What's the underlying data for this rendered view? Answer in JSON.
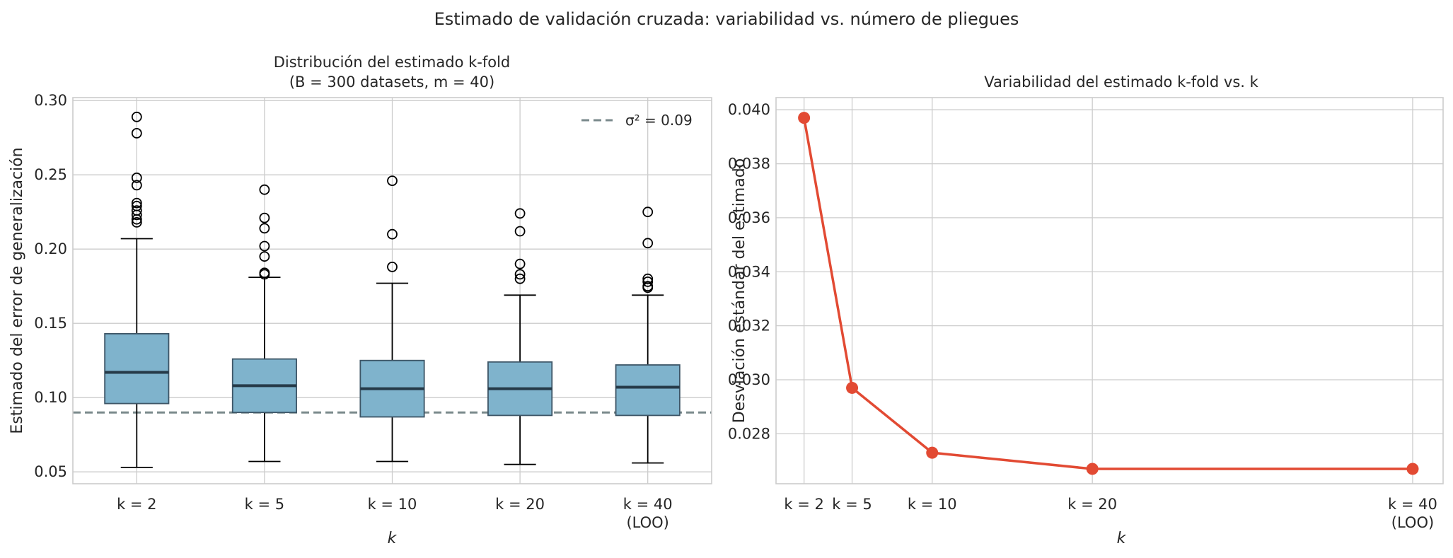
{
  "figure": {
    "title": "Estimado de validación cruzada: variabilidad vs. número de pliegues"
  },
  "chart_data": [
    {
      "type": "box",
      "title_line1": "Distribución del estimado k-fold",
      "title_line2": "(B = 300 datasets, m = 40)",
      "xlabel": "k",
      "ylabel": "Estimado del error de generalización",
      "ylim": [
        0.042,
        0.302
      ],
      "yticks": [
        0.05,
        0.1,
        0.15,
        0.2,
        0.25,
        0.3
      ],
      "ytick_labels": [
        "0.05",
        "0.10",
        "0.15",
        "0.20",
        "0.25",
        "0.30"
      ],
      "grid": true,
      "categories": [
        {
          "label": "k = 2",
          "sublabel": ""
        },
        {
          "label": "k = 5",
          "sublabel": ""
        },
        {
          "label": "k = 10",
          "sublabel": ""
        },
        {
          "label": "k = 20",
          "sublabel": ""
        },
        {
          "label": "k = 40",
          "sublabel": "(LOO)"
        }
      ],
      "boxes": [
        {
          "whisker_low": 0.053,
          "q1": 0.096,
          "median": 0.117,
          "q3": 0.143,
          "whisker_high": 0.207,
          "outliers": [
            0.289,
            0.278,
            0.248,
            0.243,
            0.231,
            0.229,
            0.226,
            0.223,
            0.22,
            0.218
          ]
        },
        {
          "whisker_low": 0.057,
          "q1": 0.09,
          "median": 0.108,
          "q3": 0.126,
          "whisker_high": 0.181,
          "outliers": [
            0.24,
            0.221,
            0.214,
            0.202,
            0.195,
            0.184,
            0.183
          ]
        },
        {
          "whisker_low": 0.057,
          "q1": 0.087,
          "median": 0.106,
          "q3": 0.125,
          "whisker_high": 0.177,
          "outliers": [
            0.246,
            0.21,
            0.188
          ]
        },
        {
          "whisker_low": 0.055,
          "q1": 0.088,
          "median": 0.106,
          "q3": 0.124,
          "whisker_high": 0.169,
          "outliers": [
            0.224,
            0.212,
            0.19,
            0.183,
            0.18
          ]
        },
        {
          "whisker_low": 0.056,
          "q1": 0.088,
          "median": 0.107,
          "q3": 0.122,
          "whisker_high": 0.169,
          "outliers": [
            0.225,
            0.204,
            0.18,
            0.178,
            0.175,
            0.174
          ]
        }
      ],
      "reference_line": {
        "value": 0.09,
        "label": "σ² = 0.09",
        "style": "dashed"
      },
      "legend_position": "top-right",
      "colors": {
        "box_fill": "#7fb3cc",
        "box_edge": "#3d5566",
        "median": "#263a48",
        "reference": "#7a8a8c",
        "whisker": "#000000"
      }
    },
    {
      "type": "line",
      "title": "Variabilidad del estimado k-fold vs. k",
      "xlabel": "k",
      "ylabel": "Desviación estándar del estimado",
      "x": [
        2,
        5,
        10,
        20,
        40
      ],
      "y": [
        0.0397,
        0.0297,
        0.0273,
        0.0267,
        0.0267
      ],
      "xlim": [
        0.25,
        41.9
      ],
      "ylim": [
        0.02615,
        0.04045
      ],
      "yticks": [
        0.028,
        0.03,
        0.032,
        0.034,
        0.036,
        0.038,
        0.04
      ],
      "ytick_labels": [
        "0.028",
        "0.030",
        "0.032",
        "0.034",
        "0.036",
        "0.038",
        "0.040"
      ],
      "xtick_labels": [
        {
          "label": "k = 2",
          "sublabel": ""
        },
        {
          "label": "k = 5",
          "sublabel": ""
        },
        {
          "label": "k = 10",
          "sublabel": ""
        },
        {
          "label": "k = 20",
          "sublabel": ""
        },
        {
          "label": "k = 40",
          "sublabel": "(LOO)"
        }
      ],
      "grid": true,
      "markers": true,
      "colors": {
        "line": "#e24a33"
      }
    }
  ]
}
